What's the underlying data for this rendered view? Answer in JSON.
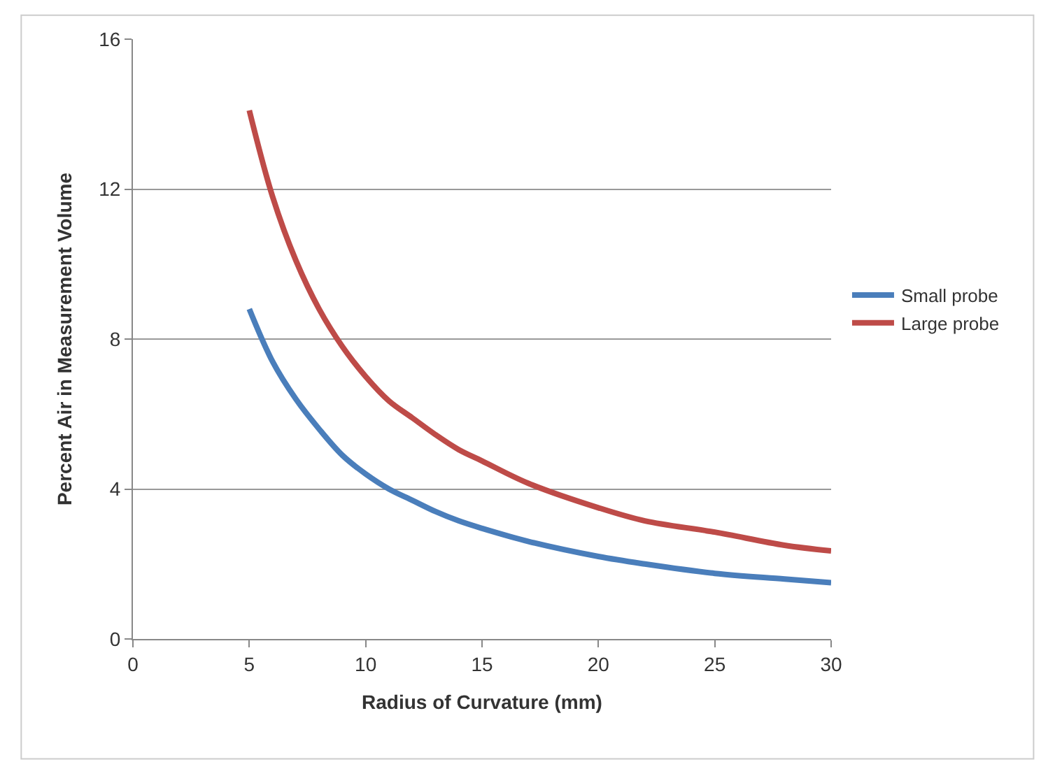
{
  "chart_data": {
    "type": "line",
    "xlabel": "Radius of Curvature (mm)",
    "ylabel": "Percent Air in Measurement Volume",
    "x": [
      5,
      6,
      7,
      8,
      9,
      10,
      11,
      12,
      13,
      14,
      15,
      17,
      20,
      22,
      25,
      28,
      30
    ],
    "series": [
      {
        "name": "Small probe",
        "color": "#4a7ebb",
        "values": [
          8.8,
          7.4,
          6.4,
          5.6,
          4.9,
          4.4,
          4.0,
          3.7,
          3.4,
          3.15,
          2.95,
          2.6,
          2.2,
          2.0,
          1.75,
          1.6,
          1.5
        ]
      },
      {
        "name": "Large probe",
        "color": "#be4b48",
        "values": [
          14.1,
          11.8,
          10.1,
          8.8,
          7.8,
          7.0,
          6.35,
          5.9,
          5.45,
          5.05,
          4.75,
          4.15,
          3.5,
          3.15,
          2.85,
          2.5,
          2.35
        ]
      }
    ],
    "xlim": [
      0,
      30
    ],
    "xticks": [
      0,
      5,
      10,
      15,
      20,
      25,
      30
    ],
    "ylim": [
      0,
      16
    ],
    "yticks": [
      0,
      4,
      8,
      12,
      16
    ],
    "grid": "y",
    "legend": "right",
    "marker": "none",
    "line_style": "solid"
  }
}
